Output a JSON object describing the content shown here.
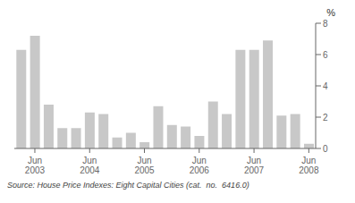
{
  "chart_data": {
    "type": "bar",
    "categories": [
      null,
      "Jun\n2003",
      null,
      null,
      null,
      "Jun\n2004",
      null,
      null,
      null,
      "Jun\n2005",
      null,
      null,
      null,
      "Jun\n2006",
      null,
      null,
      null,
      "Jun\n2007",
      null,
      null,
      null,
      "Jun\n2008"
    ],
    "values": [
      6.3,
      7.2,
      2.8,
      1.3,
      1.3,
      2.3,
      2.2,
      0.7,
      1.0,
      0.4,
      2.7,
      1.5,
      1.4,
      0.8,
      3.0,
      2.2,
      6.3,
      6.3,
      6.9,
      2.1,
      2.2,
      0.3
    ],
    "color": "#c8c8c8",
    "ylim": [
      0,
      8
    ],
    "yticks": [
      0,
      2,
      4,
      6,
      8
    ],
    "ylabel": "%",
    "annotations": [
      "Source: House Price Indexes: Eight Capital Cities (cat.  no.  6416.0)"
    ],
    "grid": false
  }
}
